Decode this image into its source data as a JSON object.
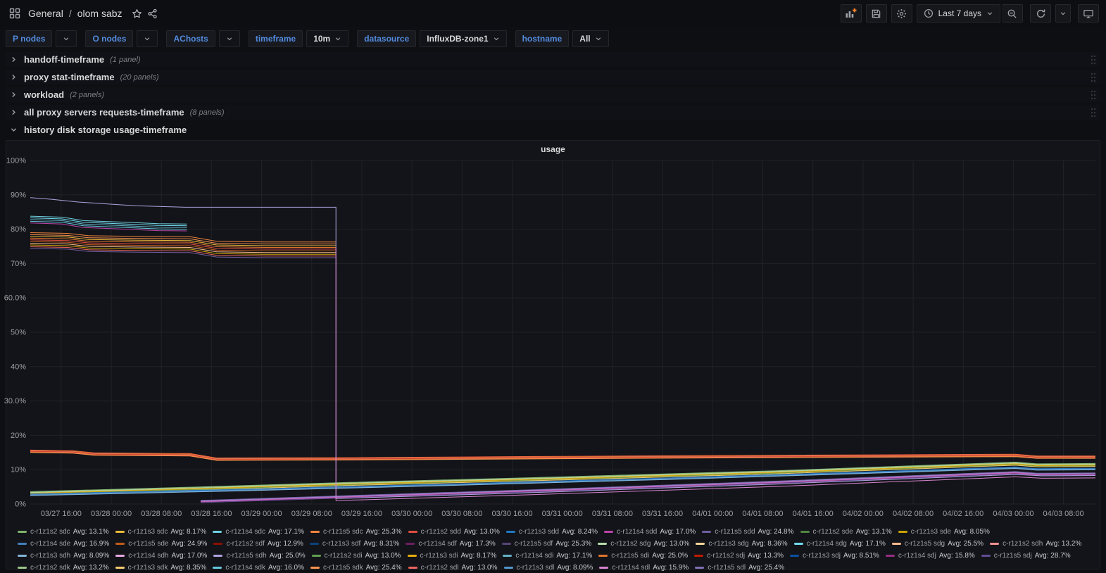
{
  "topnav": {
    "breadcrumb": {
      "section": "General",
      "separator": "/",
      "dashboard": "olom sabz"
    },
    "time_picker": "Last 7 days"
  },
  "submenu": {
    "variables": [
      {
        "label": "P nodes",
        "value": ""
      },
      {
        "label": "O nodes",
        "value": ""
      },
      {
        "label": "AChosts",
        "value": ""
      },
      {
        "label": "timeframe",
        "value": "10m"
      },
      {
        "label": "datasource",
        "value": "InfluxDB-zone1"
      },
      {
        "label": "hostname",
        "value": "All"
      }
    ]
  },
  "rows": [
    {
      "title": "handoff-timeframe",
      "meta": "(1 panel)"
    },
    {
      "title": "proxy stat-timeframe",
      "meta": "(20 panels)"
    },
    {
      "title": "workload",
      "meta": "(2 panels)"
    },
    {
      "title": "all proxy servers requests-timeframe",
      "meta": "(8 panels)"
    }
  ],
  "expanded_row": {
    "title": "history disk storage usage-timeframe"
  },
  "theme": {
    "link_blue": "#538ade",
    "add_plus_orange": "#f5822b",
    "panel_bg": "#131419",
    "grid_line": "#202226"
  },
  "chart_data": {
    "type": "line",
    "title": "usage",
    "ylim": [
      0,
      100
    ],
    "y_ticks": [
      "0%",
      "10%",
      "20%",
      "30.0%",
      "40%",
      "50%",
      "60.0%",
      "70%",
      "80%",
      "90%",
      "100%"
    ],
    "x_ticks": [
      "03/27 16:00",
      "03/28 00:00",
      "03/28 08:00",
      "03/28 16:00",
      "03/29 00:00",
      "03/29 08:00",
      "03/29 16:00",
      "03/30 00:00",
      "03/30 08:00",
      "03/30 16:00",
      "03/31 00:00",
      "03/31 08:00",
      "03/31 16:00",
      "04/01 00:00",
      "04/01 08:00",
      "04/01 16:00",
      "04/02 00:00",
      "04/02 08:00",
      "04/02 16:00",
      "04/03 00:00",
      "04/03 08:00"
    ],
    "avg_label": "Avg:",
    "legend": [
      {
        "n": "c-r1z1s2 sdc",
        "a": "13.1%",
        "c": "#7EB26D"
      },
      {
        "n": "c-r1z1s3 sdc",
        "a": "8.17%",
        "c": "#EAB839"
      },
      {
        "n": "c-r1z1s4 sdc",
        "a": "17.1%",
        "c": "#6ED0E0"
      },
      {
        "n": "c-r1z1s5 sdc",
        "a": "25.3%",
        "c": "#EF843C"
      },
      {
        "n": "c-r1z1s2 sdd",
        "a": "13.0%",
        "c": "#E24D42"
      },
      {
        "n": "c-r1z1s3 sdd",
        "a": "8.24%",
        "c": "#1F78C1"
      },
      {
        "n": "c-r1z1s4 sdd",
        "a": "17.0%",
        "c": "#BA43A9"
      },
      {
        "n": "c-r1z1s5 sdd",
        "a": "24.8%",
        "c": "#705DA0"
      },
      {
        "n": "c-r1z1s2 sde",
        "a": "13.1%",
        "c": "#508642"
      },
      {
        "n": "c-r1z1s3 sde",
        "a": "8.05%",
        "c": "#CCA300"
      },
      {
        "n": "c-r1z1s4 sde",
        "a": "16.9%",
        "c": "#447EBC"
      },
      {
        "n": "c-r1z1s5 sde",
        "a": "24.9%",
        "c": "#C15C17"
      },
      {
        "n": "c-r1z1s2 sdf",
        "a": "12.9%",
        "c": "#890F02"
      },
      {
        "n": "c-r1z1s3 sdf",
        "a": "8.31%",
        "c": "#0A437C"
      },
      {
        "n": "c-r1z1s4 sdf",
        "a": "17.3%",
        "c": "#6D1F62"
      },
      {
        "n": "c-r1z1s5 sdf",
        "a": "25.3%",
        "c": "#584477"
      },
      {
        "n": "c-r1z1s2 sdg",
        "a": "13.0%",
        "c": "#B7DBAB"
      },
      {
        "n": "c-r1z1s3 sdg",
        "a": "8.36%",
        "c": "#F4D598"
      },
      {
        "n": "c-r1z1s4 sdg",
        "a": "17.1%",
        "c": "#70DBED"
      },
      {
        "n": "c-r1z1s5 sdg",
        "a": "25.5%",
        "c": "#F9BA8F"
      },
      {
        "n": "c-r1z1s2 sdh",
        "a": "13.2%",
        "c": "#F29191"
      },
      {
        "n": "c-r1z1s3 sdh",
        "a": "8.09%",
        "c": "#82B5D8"
      },
      {
        "n": "c-r1z1s4 sdh",
        "a": "17.0%",
        "c": "#E5A8E2"
      },
      {
        "n": "c-r1z1s5 sdh",
        "a": "25.0%",
        "c": "#AEA2E0"
      },
      {
        "n": "c-r1z1s2 sdi",
        "a": "13.0%",
        "c": "#629E51"
      },
      {
        "n": "c-r1z1s3 sdi",
        "a": "8.17%",
        "c": "#E5AC0E"
      },
      {
        "n": "c-r1z1s4 sdi",
        "a": "17.1%",
        "c": "#64B0C8"
      },
      {
        "n": "c-r1z1s5 sdi",
        "a": "25.0%",
        "c": "#E0752D"
      },
      {
        "n": "c-r1z1s2 sdj",
        "a": "13.3%",
        "c": "#BF1B00"
      },
      {
        "n": "c-r1z1s3 sdj",
        "a": "8.51%",
        "c": "#0A50A1"
      },
      {
        "n": "c-r1z1s4 sdj",
        "a": "15.8%",
        "c": "#962D82"
      },
      {
        "n": "c-r1z1s5 sdj",
        "a": "28.7%",
        "c": "#614D93"
      },
      {
        "n": "c-r1z1s2 sdk",
        "a": "13.2%",
        "c": "#9AC48A"
      },
      {
        "n": "c-r1z1s3 sdk",
        "a": "8.35%",
        "c": "#F2C96D"
      },
      {
        "n": "c-r1z1s4 sdk",
        "a": "16.0%",
        "c": "#65C5DB"
      },
      {
        "n": "c-r1z1s5 sdk",
        "a": "25.4%",
        "c": "#F9934E"
      },
      {
        "n": "c-r1z1s2 sdl",
        "a": "13.0%",
        "c": "#EA6460"
      },
      {
        "n": "c-r1z1s3 sdl",
        "a": "8.09%",
        "c": "#5195CE"
      },
      {
        "n": "c-r1z1s4 sdl",
        "a": "15.9%",
        "c": "#D683CE"
      },
      {
        "n": "c-r1z1s5 sdl",
        "a": "25.4%",
        "c": "#806EB7"
      }
    ],
    "lines": [
      {
        "c": "#AEA2E0",
        "p": [
          [
            0,
            89.2
          ],
          [
            0.02,
            88.7
          ],
          [
            0.045,
            87.9
          ],
          [
            0.07,
            87.4
          ],
          [
            0.1,
            86.8
          ],
          [
            0.145,
            86.4
          ],
          [
            0.287,
            86.4
          ],
          [
            0.287,
            1.6
          ],
          [
            0.45,
            3.1
          ],
          [
            0.7,
            5.8
          ],
          [
            0.925,
            8.6
          ],
          [
            0.95,
            8.2
          ],
          [
            1,
            8.3
          ]
        ]
      },
      {
        "c": "#D683CE",
        "p": [
          [
            0.287,
            74.6
          ],
          [
            0.287,
            1.0
          ],
          [
            0.45,
            2.5
          ],
          [
            0.7,
            5.1
          ],
          [
            0.925,
            7.9
          ],
          [
            0.95,
            7.5
          ],
          [
            1,
            7.6
          ]
        ]
      }
    ],
    "bands": [
      {
        "colors": [
          "#6ED0E0",
          "#70DBED",
          "#64B0C8",
          "#65C5DB",
          "#BA43A9"
        ],
        "offsets": [
          0,
          -0.5,
          -1.0,
          -1.5,
          -2.0
        ],
        "base": [
          [
            0,
            83.8
          ],
          [
            0.03,
            83.5
          ],
          [
            0.05,
            82.5
          ],
          [
            0.09,
            82.0
          ],
          [
            0.12,
            81.6
          ],
          [
            0.147,
            81.5
          ]
        ]
      },
      {
        "colors": [
          "#EF843C",
          "#F9934E",
          "#EAB839",
          "#E0752D",
          "#E24D42",
          "#C15C17",
          "#F9BA8F",
          "#CCA300",
          "#EA6460",
          "#705DA0"
        ],
        "offsets": [
          0,
          -0.6,
          -1.1,
          -1.6,
          -2.1,
          -2.6,
          -3.1,
          -3.6,
          -4.1,
          -4.6
        ],
        "base": [
          [
            0,
            79.0
          ],
          [
            0.035,
            78.8
          ],
          [
            0.055,
            78.1
          ],
          [
            0.1,
            77.9
          ],
          [
            0.15,
            77.8
          ],
          [
            0.175,
            76.5
          ],
          [
            0.22,
            76.3
          ],
          [
            0.287,
            76.3
          ]
        ]
      },
      {
        "colors": [
          "#E24D42",
          "#EF843C",
          "#C15C17",
          "#F29191",
          "#BF1B00",
          "#EA6460",
          "#E0752D",
          "#F9934E"
        ],
        "offsets": [
          0,
          -0.1,
          -0.2,
          -0.3,
          -0.4,
          -0.5,
          -0.6,
          -0.7
        ],
        "base": [
          [
            0,
            15.7
          ],
          [
            0.04,
            15.5
          ],
          [
            0.06,
            14.9
          ],
          [
            0.15,
            14.7
          ],
          [
            0.175,
            13.4
          ],
          [
            0.3,
            13.5
          ],
          [
            0.5,
            13.9
          ],
          [
            0.7,
            14.2
          ],
          [
            0.925,
            14.5
          ],
          [
            0.945,
            14.0
          ],
          [
            1,
            14.0
          ]
        ]
      },
      {
        "colors": [
          "#7EB26D",
          "#9AC48A",
          "#B7DBAB",
          "#EAB839",
          "#CCA300",
          "#629E51",
          "#F2C96D"
        ],
        "offsets": [
          0,
          -0.15,
          -0.3,
          -0.45,
          -0.6,
          -0.75,
          -0.9
        ],
        "base": [
          [
            0,
            3.6
          ],
          [
            0.15,
            4.9
          ],
          [
            0.3,
            6.3
          ],
          [
            0.5,
            7.9
          ],
          [
            0.7,
            9.7
          ],
          [
            0.925,
            12.2
          ],
          [
            0.945,
            11.7
          ],
          [
            1,
            11.8
          ]
        ]
      },
      {
        "colors": [
          "#1F78C1",
          "#447EBC",
          "#5195CE",
          "#82B5D8"
        ],
        "offsets": [
          0,
          -0.15,
          -0.3,
          -0.45
        ],
        "base": [
          [
            0,
            2.9
          ],
          [
            0.2,
            4.3
          ],
          [
            0.4,
            5.9
          ],
          [
            0.6,
            7.6
          ],
          [
            0.8,
            9.5
          ],
          [
            0.925,
            10.8
          ],
          [
            0.945,
            10.3
          ],
          [
            1,
            10.4
          ]
        ]
      },
      {
        "colors": [
          "#705DA0",
          "#806EB7",
          "#AEA2E0",
          "#BA43A9",
          "#D683CE",
          "#962D82",
          "#614D93"
        ],
        "offsets": [
          0,
          -0.1,
          -0.25,
          -0.35,
          -0.45,
          -0.55,
          -0.65
        ],
        "base": [
          [
            0.16,
            1.05
          ],
          [
            0.3,
            2.45
          ],
          [
            0.5,
            4.45
          ],
          [
            0.7,
            6.65
          ],
          [
            0.925,
            9.45
          ],
          [
            0.945,
            8.95
          ],
          [
            1,
            9.05
          ]
        ]
      }
    ]
  }
}
